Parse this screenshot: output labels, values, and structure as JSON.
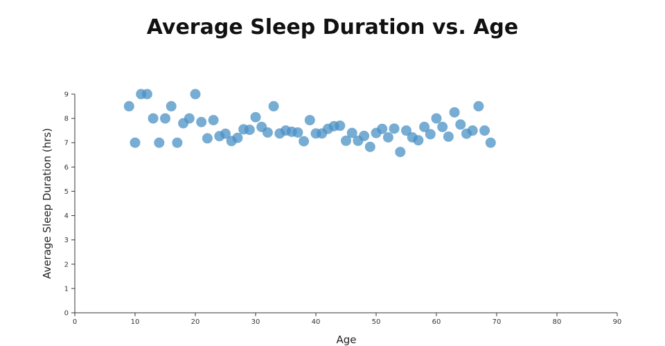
{
  "chart_data": {
    "type": "scatter",
    "title": "Average Sleep Duration vs. Age",
    "xlabel": "Age",
    "ylabel": "Average Sleep Duration (hrs)",
    "xlim": [
      0,
      90
    ],
    "ylim": [
      0,
      9
    ],
    "xticks": [
      0,
      10,
      20,
      30,
      40,
      50,
      60,
      70,
      80,
      90
    ],
    "yticks": [
      0,
      1,
      2,
      3,
      4,
      5,
      6,
      7,
      8,
      9
    ],
    "grid": false,
    "color": "#4a90c4",
    "x": [
      9,
      10,
      11,
      12,
      13,
      14,
      15,
      16,
      17,
      18,
      19,
      20,
      21,
      22,
      23,
      24,
      25,
      26,
      27,
      28,
      29,
      30,
      31,
      32,
      33,
      34,
      35,
      36,
      37,
      38,
      39,
      40,
      41,
      42,
      43,
      44,
      45,
      46,
      47,
      48,
      49,
      50,
      51,
      52,
      53,
      54,
      55,
      56,
      57,
      58,
      59,
      60,
      61,
      62,
      63,
      64,
      65,
      66,
      67,
      68,
      69
    ],
    "y": [
      8.5,
      7.0,
      9.0,
      9.0,
      8.0,
      7.0,
      8.0,
      8.5,
      7.0,
      7.8,
      8.0,
      9.0,
      7.85,
      7.18,
      7.93,
      7.27,
      7.37,
      7.07,
      7.2,
      7.55,
      7.53,
      8.05,
      7.65,
      7.42,
      8.5,
      7.38,
      7.5,
      7.45,
      7.42,
      7.06,
      7.93,
      7.38,
      7.38,
      7.57,
      7.68,
      7.7,
      7.08,
      7.4,
      7.08,
      7.28,
      6.83,
      7.4,
      7.57,
      7.22,
      7.58,
      6.62,
      7.5,
      7.22,
      7.1,
      7.65,
      7.35,
      8.0,
      7.65,
      7.25,
      8.25,
      7.75,
      7.37,
      7.5,
      8.5,
      7.5,
      7.0
    ]
  }
}
